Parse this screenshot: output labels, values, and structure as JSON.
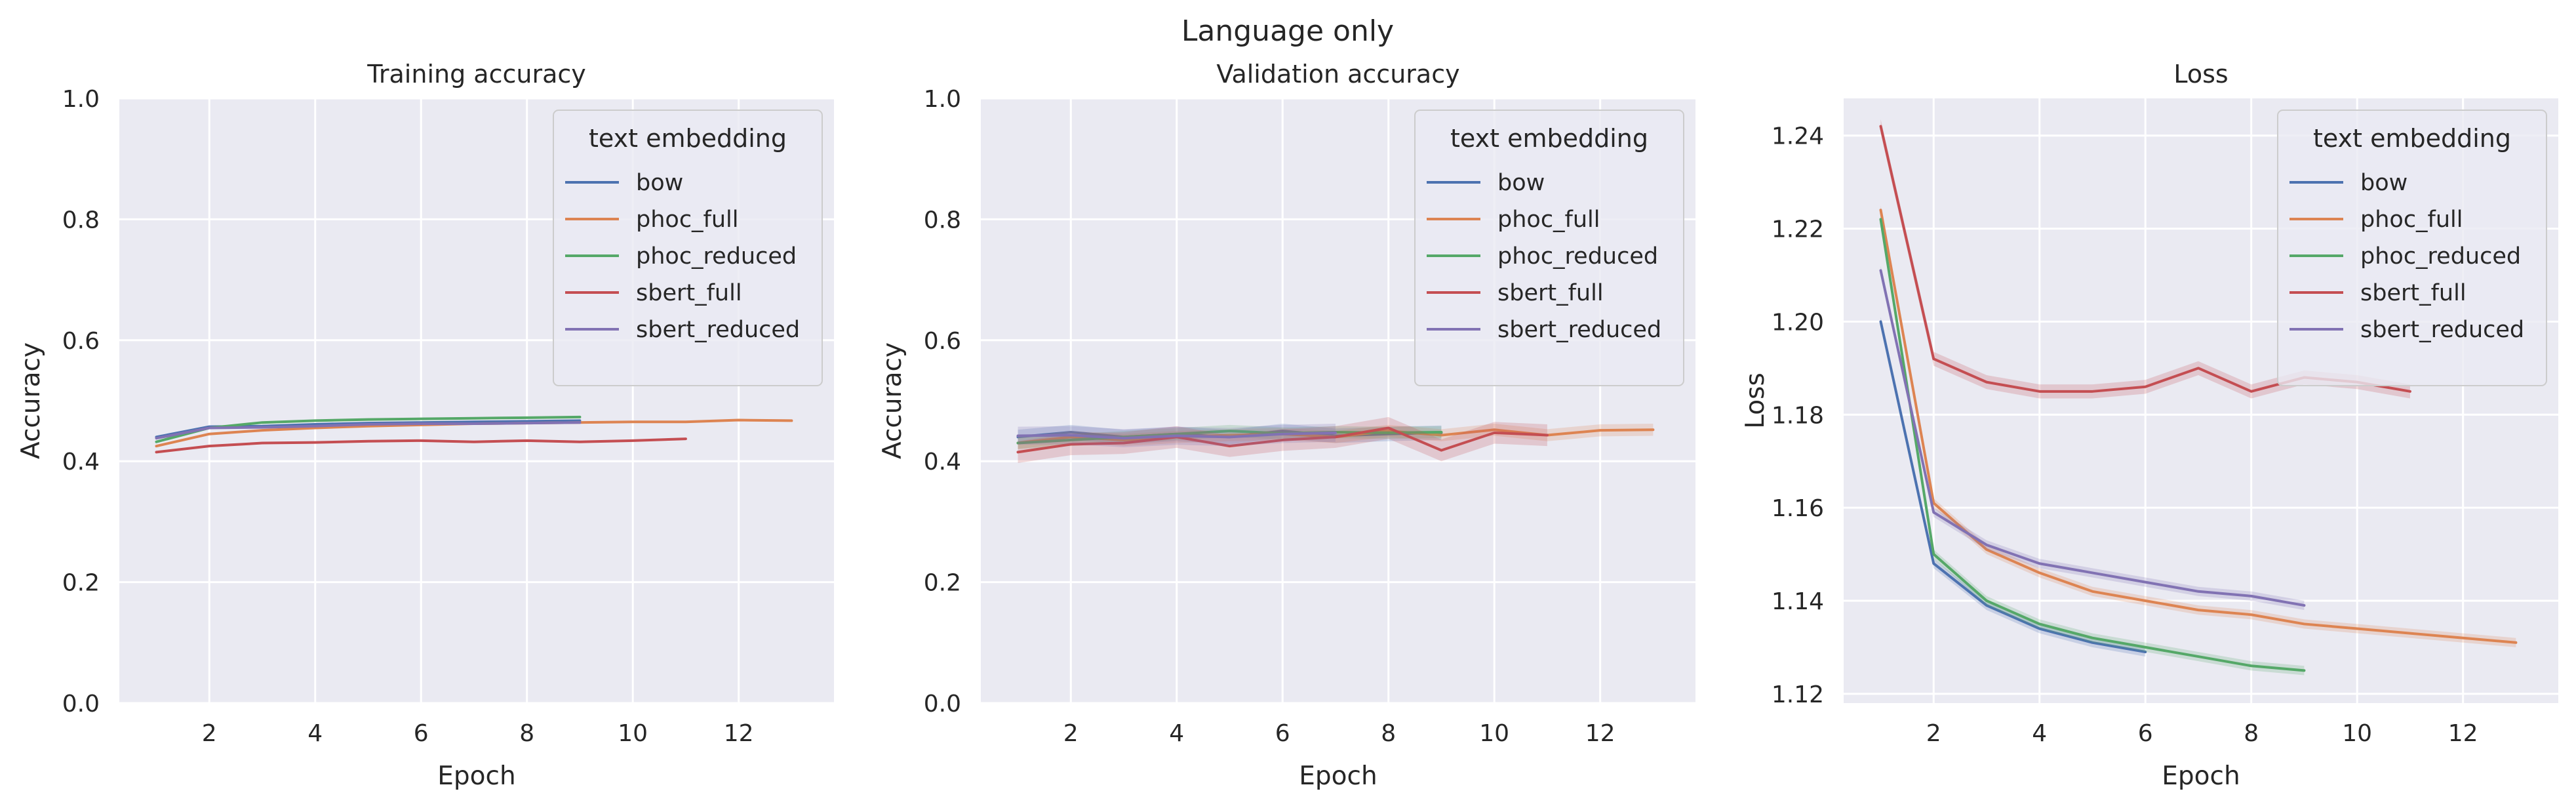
{
  "suptitle": "Language only",
  "colors": {
    "plot_background": "#eaeaf2",
    "grid": "#ffffff",
    "text": "#262626",
    "legend_border": "#cccccc"
  },
  "legend": {
    "title": "text embedding",
    "placement": "upper right"
  },
  "chart_data": [
    {
      "type": "line",
      "title": "Training accuracy",
      "xlabel": "Epoch",
      "ylabel": "Accuracy",
      "xlim": [
        0.3,
        13.8
      ],
      "ylim": [
        0.0,
        1.0
      ],
      "xticks": [
        2,
        4,
        6,
        8,
        10,
        12
      ],
      "yticks": [
        0.0,
        0.2,
        0.4,
        0.6,
        0.8,
        1.0
      ],
      "ytick_format": "1",
      "grid": true,
      "legend_placement": "upper right",
      "series": [
        {
          "name": "bow",
          "color": "#4c72b0",
          "x": [
            1,
            2,
            3,
            4,
            5,
            6,
            7,
            8,
            9
          ],
          "y": [
            0.44,
            0.457,
            0.458,
            0.461,
            0.463,
            0.464,
            0.465,
            0.466,
            0.467
          ]
        },
        {
          "name": "phoc_full",
          "color": "#dd8452",
          "x": [
            1,
            2,
            3,
            4,
            5,
            6,
            7,
            8,
            9,
            10,
            11,
            12,
            13
          ],
          "y": [
            0.425,
            0.445,
            0.451,
            0.455,
            0.458,
            0.46,
            0.462,
            0.463,
            0.464,
            0.465,
            0.465,
            0.468,
            0.467
          ]
        },
        {
          "name": "phoc_reduced",
          "color": "#55a868",
          "x": [
            1,
            2,
            3,
            4,
            5,
            6,
            7,
            8,
            9
          ],
          "y": [
            0.432,
            0.455,
            0.464,
            0.467,
            0.469,
            0.47,
            0.471,
            0.472,
            0.473
          ]
        },
        {
          "name": "sbert_full",
          "color": "#c44e52",
          "x": [
            1,
            2,
            3,
            4,
            5,
            6,
            7,
            8,
            9,
            10,
            11
          ],
          "y": [
            0.415,
            0.425,
            0.43,
            0.431,
            0.433,
            0.434,
            0.432,
            0.434,
            0.432,
            0.434,
            0.437
          ]
        },
        {
          "name": "sbert_reduced",
          "color": "#8172b3",
          "x": [
            1,
            2,
            3,
            4,
            5,
            6,
            7,
            8,
            9
          ],
          "y": [
            0.438,
            0.455,
            0.456,
            0.458,
            0.461,
            0.462,
            0.462,
            0.463,
            0.464
          ]
        }
      ]
    },
    {
      "type": "line",
      "title": "Validation accuracy",
      "xlabel": "Epoch",
      "ylabel": "Accuracy",
      "xlim": [
        0.3,
        13.8
      ],
      "ylim": [
        0.0,
        1.0
      ],
      "xticks": [
        2,
        4,
        6,
        8,
        10,
        12
      ],
      "yticks": [
        0.0,
        0.2,
        0.4,
        0.6,
        0.8,
        1.0
      ],
      "ytick_format": "1",
      "grid": true,
      "legend_placement": "upper right",
      "series": [
        {
          "name": "bow",
          "color": "#4c72b0",
          "x": [
            1,
            2,
            3,
            4,
            5,
            6,
            7,
            8,
            9
          ],
          "y": [
            0.44,
            0.448,
            0.44,
            0.445,
            0.44,
            0.45,
            0.442,
            0.445,
            0.447
          ],
          "band": 0.012
        },
        {
          "name": "phoc_full",
          "color": "#dd8452",
          "x": [
            1,
            2,
            3,
            4,
            5,
            6,
            7,
            8,
            9,
            10,
            11,
            12,
            13
          ],
          "y": [
            0.43,
            0.44,
            0.435,
            0.44,
            0.443,
            0.445,
            0.44,
            0.45,
            0.443,
            0.452,
            0.443,
            0.451,
            0.452
          ],
          "band": 0.01
        },
        {
          "name": "phoc_reduced",
          "color": "#55a868",
          "x": [
            1,
            2,
            3,
            4,
            5,
            6,
            7,
            8,
            9
          ],
          "y": [
            0.43,
            0.435,
            0.44,
            0.445,
            0.45,
            0.446,
            0.448,
            0.447,
            0.448
          ],
          "band": 0.01
        },
        {
          "name": "sbert_full",
          "color": "#c44e52",
          "x": [
            1,
            2,
            3,
            4,
            5,
            6,
            7,
            8,
            9,
            10,
            11
          ],
          "y": [
            0.415,
            0.428,
            0.43,
            0.44,
            0.425,
            0.435,
            0.44,
            0.455,
            0.418,
            0.447,
            0.443
          ],
          "band": 0.018
        },
        {
          "name": "sbert_reduced",
          "color": "#8172b3",
          "x": [
            1,
            2,
            3,
            4,
            5,
            6,
            7
          ],
          "y": [
            0.442,
            0.443,
            0.438,
            0.442,
            0.44,
            0.445,
            0.447
          ],
          "band": 0.015
        }
      ]
    },
    {
      "type": "line",
      "title": "Loss",
      "xlabel": "Epoch",
      "ylabel": "Loss",
      "xlim": [
        0.3,
        13.8
      ],
      "ylim": [
        1.118,
        1.248
      ],
      "xticks": [
        2,
        4,
        6,
        8,
        10,
        12
      ],
      "yticks": [
        1.12,
        1.14,
        1.16,
        1.18,
        1.2,
        1.22,
        1.24
      ],
      "ytick_format": "2",
      "grid": true,
      "legend_placement": "upper right",
      "series": [
        {
          "name": "bow",
          "color": "#4c72b0",
          "x": [
            1,
            2,
            3,
            4,
            5,
            6
          ],
          "y": [
            1.2,
            1.148,
            1.139,
            1.134,
            1.131,
            1.129
          ],
          "band": 0.001
        },
        {
          "name": "phoc_full",
          "color": "#dd8452",
          "x": [
            1,
            2,
            3,
            4,
            5,
            6,
            7,
            8,
            9,
            10,
            11,
            12,
            13
          ],
          "y": [
            1.224,
            1.161,
            1.151,
            1.146,
            1.142,
            1.14,
            1.138,
            1.137,
            1.135,
            1.134,
            1.133,
            1.132,
            1.131
          ],
          "band": 0.001
        },
        {
          "name": "phoc_reduced",
          "color": "#55a868",
          "x": [
            1,
            2,
            3,
            4,
            5,
            6,
            7,
            8,
            9
          ],
          "y": [
            1.222,
            1.15,
            1.14,
            1.135,
            1.132,
            1.13,
            1.128,
            1.126,
            1.125
          ],
          "band": 0.001
        },
        {
          "name": "sbert_full",
          "color": "#c44e52",
          "x": [
            1,
            2,
            3,
            4,
            5,
            6,
            7,
            8,
            9,
            10,
            11
          ],
          "y": [
            1.242,
            1.192,
            1.187,
            1.185,
            1.185,
            1.186,
            1.19,
            1.185,
            1.188,
            1.187,
            1.185
          ],
          "band": 0.0015
        },
        {
          "name": "sbert_reduced",
          "color": "#8172b3",
          "x": [
            1,
            2,
            3,
            4,
            5,
            6,
            7,
            8,
            9
          ],
          "y": [
            1.211,
            1.159,
            1.152,
            1.148,
            1.146,
            1.144,
            1.142,
            1.141,
            1.139
          ],
          "band": 0.001
        }
      ]
    }
  ]
}
